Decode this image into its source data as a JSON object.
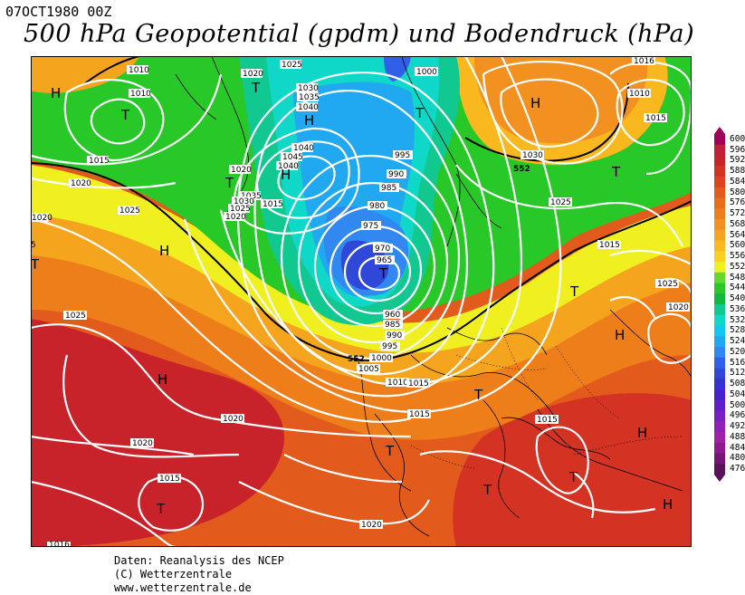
{
  "header": {
    "datetime": "07OCT1980 00Z",
    "title": "500 hPa Geopotential (gpdm) und Bodendruck (hPa)"
  },
  "footer": {
    "line1": "Daten: Reanalysis des NCEP",
    "line2": "(C) Wetterzentrale",
    "line3": "www.wetterzentrale.de"
  },
  "legend": {
    "levels": [
      "600",
      "596",
      "592",
      "588",
      "584",
      "580",
      "576",
      "572",
      "568",
      "564",
      "560",
      "556",
      "552",
      "548",
      "544",
      "540",
      "536",
      "532",
      "528",
      "524",
      "520",
      "516",
      "512",
      "508",
      "504",
      "500",
      "496",
      "492",
      "488",
      "484",
      "480",
      "476"
    ],
    "colors": [
      "#a0005a",
      "#c41e3a",
      "#c8232a",
      "#d43222",
      "#dc4420",
      "#e25a1c",
      "#e86c1a",
      "#ee7e1a",
      "#f29020",
      "#f5a41e",
      "#f8b81e",
      "#f8d020",
      "#f0f020",
      "#64d830",
      "#28c828",
      "#10b840",
      "#10c890",
      "#10d8c8",
      "#10c8f0",
      "#20a8f0",
      "#3088f0",
      "#3060e8",
      "#3048d8",
      "#3830d0",
      "#4820d0",
      "#6020c8",
      "#7820c0",
      "#9020b8",
      "#a020a8",
      "#901890",
      "#781478",
      "#5a105a"
    ],
    "highlight_line": "552"
  },
  "map_labels": {
    "highs": [
      "H",
      "H",
      "H",
      "H",
      "H",
      "H",
      "H",
      "H",
      "H",
      "H",
      "H"
    ],
    "lows": [
      "T",
      "T",
      "T",
      "T",
      "T",
      "T",
      "T",
      "T",
      "T",
      "T",
      "T",
      "T",
      "T",
      "T",
      "T"
    ],
    "isobars": [
      "1010",
      "1010",
      "1020",
      "1025",
      "1015",
      "1020",
      "1025",
      "1020",
      "1030",
      "1035",
      "1040",
      "1040",
      "1045",
      "1040",
      "1020",
      "1035",
      "1030",
      "1025",
      "1020",
      "1015",
      "1000",
      "995",
      "990",
      "985",
      "980",
      "975",
      "970",
      "965",
      "960",
      "985",
      "990",
      "995",
      "1000",
      "1005",
      "1010",
      "1015",
      "1020",
      "1025",
      "1020",
      "1015",
      "1020",
      "1016",
      "1010",
      "1015",
      "1030",
      "1025",
      "1015",
      "1025",
      "1020",
      "1015",
      "1015",
      "1015",
      "1020",
      "1016",
      "5"
    ],
    "contour_552": [
      "552",
      "552"
    ]
  }
}
